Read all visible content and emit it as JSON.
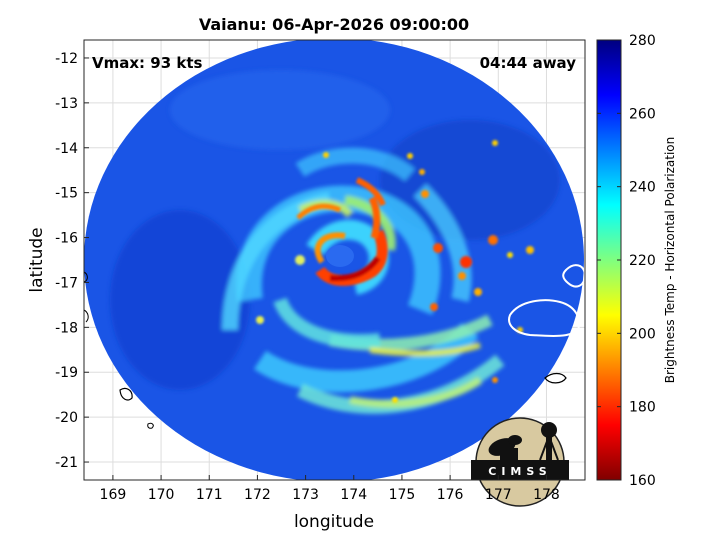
{
  "title": "Vaianu: 06-Apr-2026 09:00:00",
  "vmax_label": "Vmax: 93 kts",
  "time_away": "04:44 away",
  "xlabel": "longitude",
  "ylabel": "latitude",
  "colorbar_label": "Brightness Temp - Horizontal Polarization",
  "logo_text": "CIMSS",
  "chart_data": {
    "type": "heatmap",
    "title": "Vaianu: 06-Apr-2026 09:00:00",
    "xlabel": "longitude",
    "ylabel": "latitude",
    "xlim": [
      168.4,
      178.8
    ],
    "ylim": [
      -21.4,
      -11.6
    ],
    "x_ticks": [
      169,
      170,
      171,
      172,
      173,
      174,
      175,
      176,
      177,
      178
    ],
    "y_ticks": [
      -12,
      -13,
      -14,
      -15,
      -16,
      -17,
      -18,
      -19,
      -20,
      -21
    ],
    "grid": true,
    "colorbar": {
      "label": "Brightness Temp - Horizontal Polarization",
      "range": [
        160,
        280
      ],
      "ticks": [
        160,
        180,
        200,
        220,
        240,
        260,
        280
      ],
      "colormap": "jet"
    },
    "swath_center": [
      173.9,
      -16.8
    ],
    "eye_center": [
      173.5,
      -16.6
    ],
    "annotations": [
      "Vmax: 93 kts",
      "04:44 away"
    ]
  }
}
